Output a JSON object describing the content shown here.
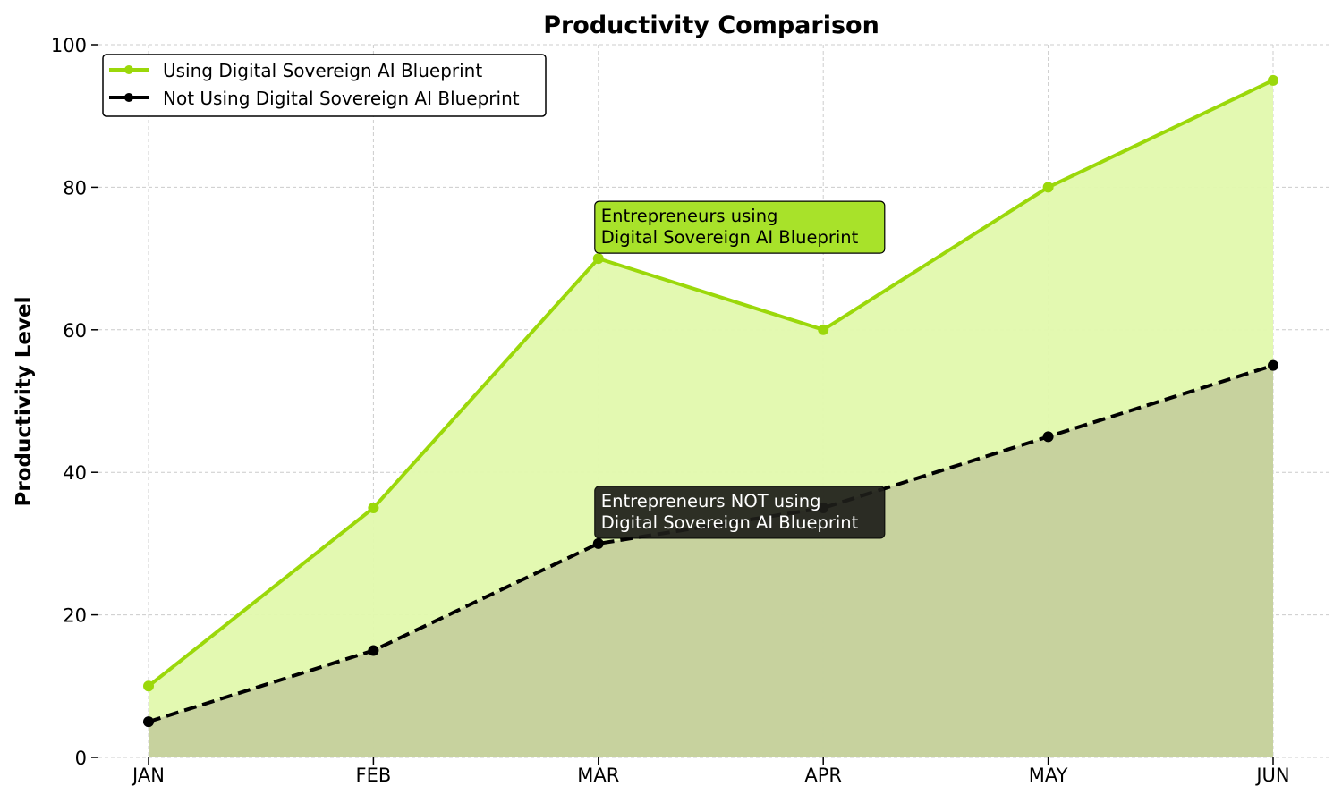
{
  "chart_data": {
    "type": "area",
    "title": "Productivity Comparison",
    "xlabel": "",
    "ylabel": "Productivity Level",
    "categories": [
      "JAN",
      "FEB",
      "MAR",
      "APR",
      "MAY",
      "JUN"
    ],
    "ylim": [
      0,
      100
    ],
    "yticks": [
      0,
      20,
      40,
      60,
      80,
      100
    ],
    "grid": true,
    "legend_position": "top-left",
    "series": [
      {
        "name": "Using Digital Sovereign AI Blueprint",
        "values": [
          10,
          35,
          70,
          60,
          80,
          95
        ],
        "color": "#9bd80a",
        "fill": "#e2f9ad",
        "style": "solid"
      },
      {
        "name": "Not Using Digital Sovereign AI Blueprint",
        "values": [
          5,
          15,
          30,
          35,
          45,
          55
        ],
        "color": "#000000",
        "fill": "#c3cd9c",
        "style": "dashed"
      }
    ],
    "annotations": [
      {
        "lines": [
          "Entrepreneurs using",
          "Digital Sovereign AI Blueprint"
        ],
        "x": "MAR",
        "y": 70,
        "bg": "#a8e22a",
        "color": "#000000"
      },
      {
        "lines": [
          "Entrepreneurs NOT using",
          "Digital Sovereign AI Blueprint"
        ],
        "x": "MAR",
        "y": 30,
        "bg": "#1e1e1a",
        "color": "#ffffff"
      }
    ]
  }
}
